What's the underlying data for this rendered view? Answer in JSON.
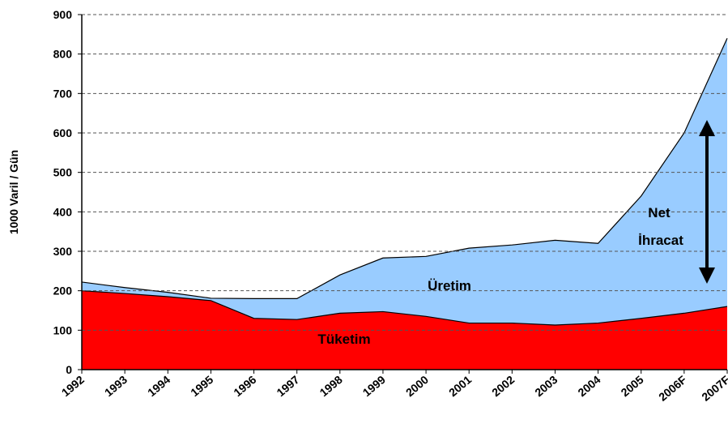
{
  "chart_data": {
    "type": "area",
    "ylabel": "1000 Varil / Gün",
    "categories": [
      "1992",
      "1993",
      "1994",
      "1995",
      "1996",
      "1997",
      "1998",
      "1999",
      "2000",
      "2001",
      "2002",
      "2003",
      "2004",
      "2005",
      "2006F",
      "2007F"
    ],
    "series": [
      {
        "name": "Üretim",
        "color": "#99ccff",
        "values": [
          222,
          208,
          196,
          181,
          180,
          180,
          240,
          283,
          287,
          308,
          316,
          328,
          320,
          440,
          600,
          840
        ]
      },
      {
        "name": "Tüketim",
        "color": "#ff0000",
        "values": [
          200,
          193,
          185,
          175,
          130,
          127,
          143,
          147,
          135,
          118,
          118,
          113,
          118,
          130,
          143,
          160
        ]
      }
    ],
    "annotations": [
      "Net",
      "İhracat"
    ],
    "ylim": [
      0,
      900
    ],
    "yticks": [
      0,
      100,
      200,
      300,
      400,
      500,
      600,
      700,
      800,
      900
    ],
    "grid": true
  }
}
